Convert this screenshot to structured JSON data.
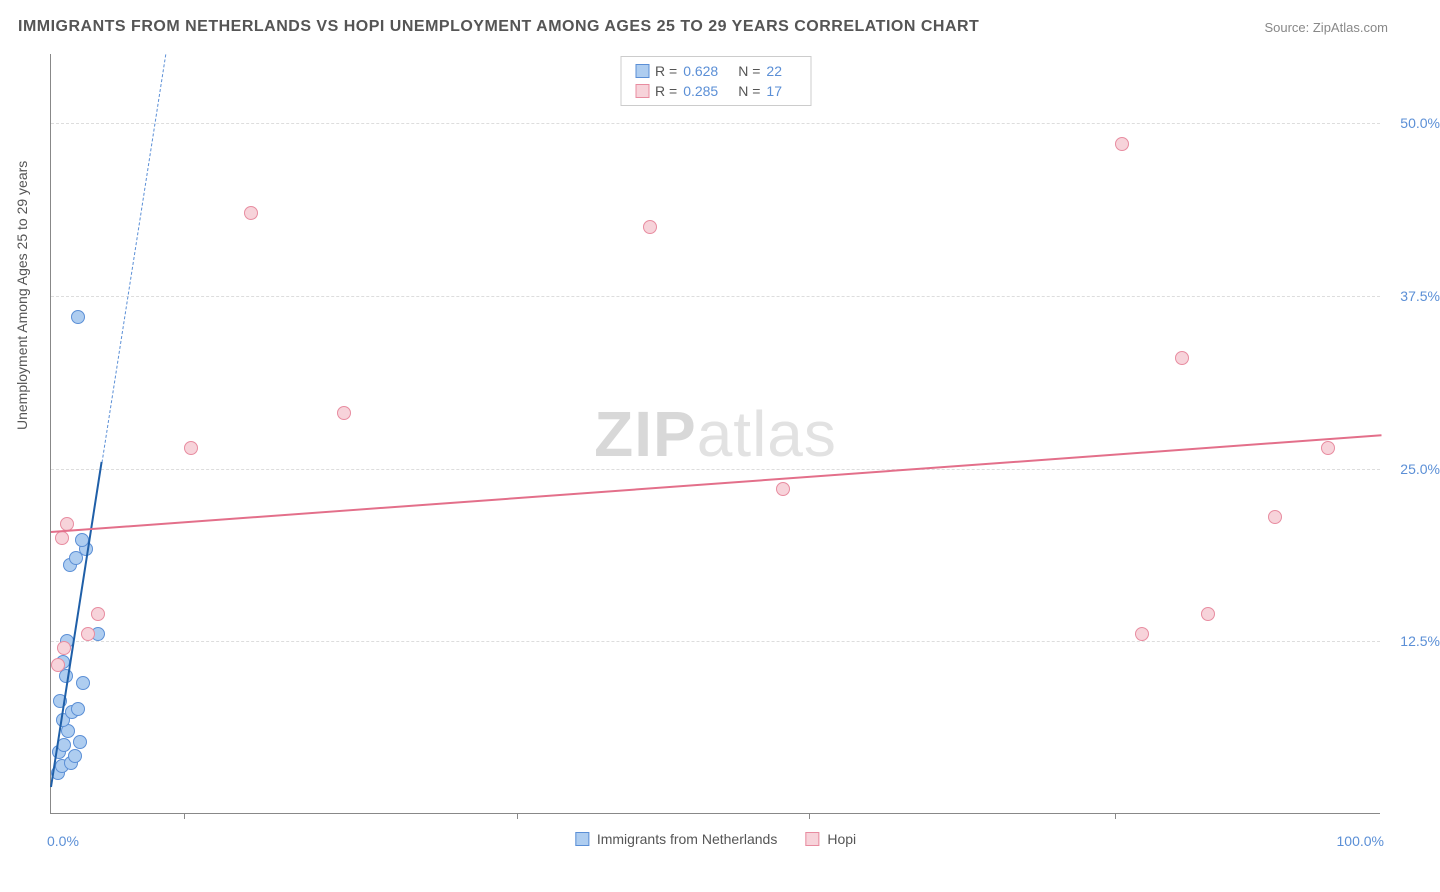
{
  "title": "IMMIGRANTS FROM NETHERLANDS VS HOPI UNEMPLOYMENT AMONG AGES 25 TO 29 YEARS CORRELATION CHART",
  "source": "Source: ZipAtlas.com",
  "watermark_a": "ZIP",
  "watermark_b": "atlas",
  "y_axis_title": "Unemployment Among Ages 25 to 29 years",
  "chart": {
    "type": "scatter",
    "background_color": "#ffffff",
    "grid_color": "#dddddd",
    "axis_color": "#888888",
    "xlim": [
      0,
      100
    ],
    "ylim": [
      0,
      55
    ],
    "x_ticks": [
      0,
      100
    ],
    "x_tick_labels": [
      "0.0%",
      "100.0%"
    ],
    "x_minor_ticks": [
      10,
      35,
      57,
      80
    ],
    "y_ticks": [
      12.5,
      25.0,
      37.5,
      50.0
    ],
    "y_tick_labels": [
      "12.5%",
      "25.0%",
      "37.5%",
      "50.0%"
    ],
    "tick_label_color": "#5b8fd6",
    "tick_fontsize": 14,
    "point_radius": 7,
    "point_border_width": 1
  },
  "series": [
    {
      "name": "Immigrants from Netherlands",
      "fill_color": "#aecdf0",
      "stroke_color": "#5b8fd6",
      "line_color": "#1f5fa8",
      "dash_color": "#5b8fd6",
      "R": "0.628",
      "N": "22",
      "trend": {
        "x1": 0,
        "y1": 2.0,
        "x2": 3.8,
        "y2": 25.5,
        "dash_x2": 12,
        "dash_y2": 76
      },
      "points": [
        {
          "x": 0.5,
          "y": 3.0
        },
        {
          "x": 0.8,
          "y": 3.5
        },
        {
          "x": 1.5,
          "y": 3.7
        },
        {
          "x": 1.8,
          "y": 4.2
        },
        {
          "x": 0.6,
          "y": 4.5
        },
        {
          "x": 1.0,
          "y": 5.0
        },
        {
          "x": 2.2,
          "y": 5.2
        },
        {
          "x": 1.3,
          "y": 6.0
        },
        {
          "x": 0.9,
          "y": 6.8
        },
        {
          "x": 1.6,
          "y": 7.4
        },
        {
          "x": 2.0,
          "y": 7.6
        },
        {
          "x": 0.7,
          "y": 8.2
        },
        {
          "x": 2.4,
          "y": 9.5
        },
        {
          "x": 1.1,
          "y": 10.0
        },
        {
          "x": 3.5,
          "y": 13.0
        },
        {
          "x": 1.4,
          "y": 18.0
        },
        {
          "x": 1.9,
          "y": 18.5
        },
        {
          "x": 2.6,
          "y": 19.2
        },
        {
          "x": 2.3,
          "y": 19.8
        },
        {
          "x": 2.0,
          "y": 36.0
        },
        {
          "x": 1.2,
          "y": 12.5
        },
        {
          "x": 0.9,
          "y": 11.0
        }
      ]
    },
    {
      "name": "Hopi",
      "fill_color": "#f7d3da",
      "stroke_color": "#e88ca0",
      "line_color": "#e36f8a",
      "dash_color": "#e88ca0",
      "R": "0.285",
      "N": "17",
      "trend": {
        "x1": 0,
        "y1": 20.5,
        "x2": 100,
        "y2": 27.5
      },
      "points": [
        {
          "x": 0.5,
          "y": 10.8
        },
        {
          "x": 1.0,
          "y": 12.0
        },
        {
          "x": 2.8,
          "y": 13.0
        },
        {
          "x": 3.5,
          "y": 14.5
        },
        {
          "x": 1.2,
          "y": 21.0
        },
        {
          "x": 10.5,
          "y": 26.5
        },
        {
          "x": 22.0,
          "y": 29.0
        },
        {
          "x": 15.0,
          "y": 43.5
        },
        {
          "x": 45.0,
          "y": 42.5
        },
        {
          "x": 55.0,
          "y": 23.5
        },
        {
          "x": 80.5,
          "y": 48.5
        },
        {
          "x": 85.0,
          "y": 33.0
        },
        {
          "x": 82.0,
          "y": 13.0
        },
        {
          "x": 87.0,
          "y": 14.5
        },
        {
          "x": 92.0,
          "y": 21.5
        },
        {
          "x": 96.0,
          "y": 26.5
        },
        {
          "x": 0.8,
          "y": 20.0
        }
      ]
    }
  ],
  "legend_bottom": [
    {
      "label": "Immigrants from Netherlands",
      "fill": "#aecdf0",
      "stroke": "#5b8fd6"
    },
    {
      "label": "Hopi",
      "fill": "#f7d3da",
      "stroke": "#e88ca0"
    }
  ]
}
